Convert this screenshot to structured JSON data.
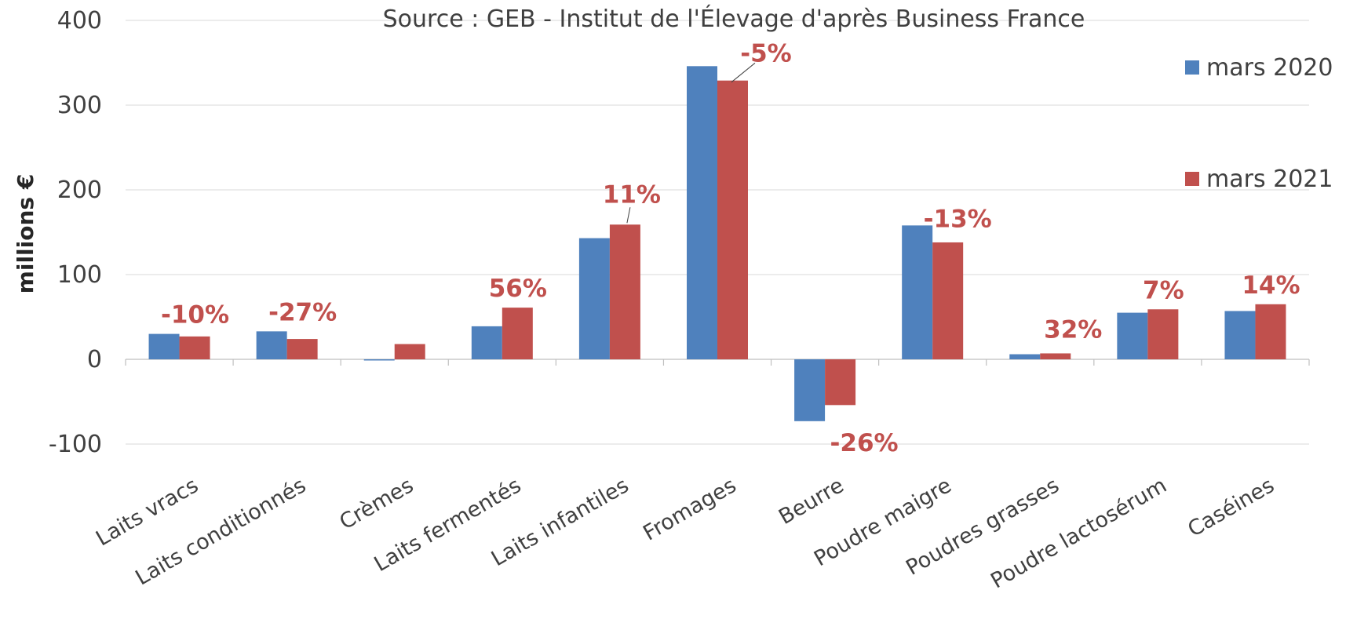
{
  "chart_data": {
    "type": "bar",
    "title": "Source : GEB - Institut de l'Élevage d'après Business France",
    "ylabel": "millions €",
    "xlabel": "",
    "ylim": [
      -100,
      400
    ],
    "yticks": [
      400,
      300,
      200,
      100,
      0,
      -100
    ],
    "grid": true,
    "legend_position": "right",
    "categories": [
      "Laits vracs",
      "Laits conditionnés",
      "Crèmes",
      "Laits fermentés",
      "Laits infantiles",
      "Fromages",
      "Beurre",
      "Poudre maigre",
      "Poudres grasses",
      "Poudre lactosérum",
      "Caséines"
    ],
    "series": [
      {
        "name": "mars 2020",
        "color": "#4f81bd",
        "values": [
          30,
          33,
          -1,
          39,
          143,
          346,
          -73,
          158,
          6,
          55,
          57
        ]
      },
      {
        "name": "mars 2021",
        "color": "#c0504d",
        "values": [
          27,
          24,
          18,
          61,
          159,
          329,
          -54,
          138,
          7,
          59,
          65
        ]
      }
    ],
    "annotations": [
      "-10%",
      "-27%",
      "",
      "56%",
      "11%",
      "-5%",
      "-26%",
      "-13%",
      "32%",
      "7%",
      "14%"
    ]
  }
}
